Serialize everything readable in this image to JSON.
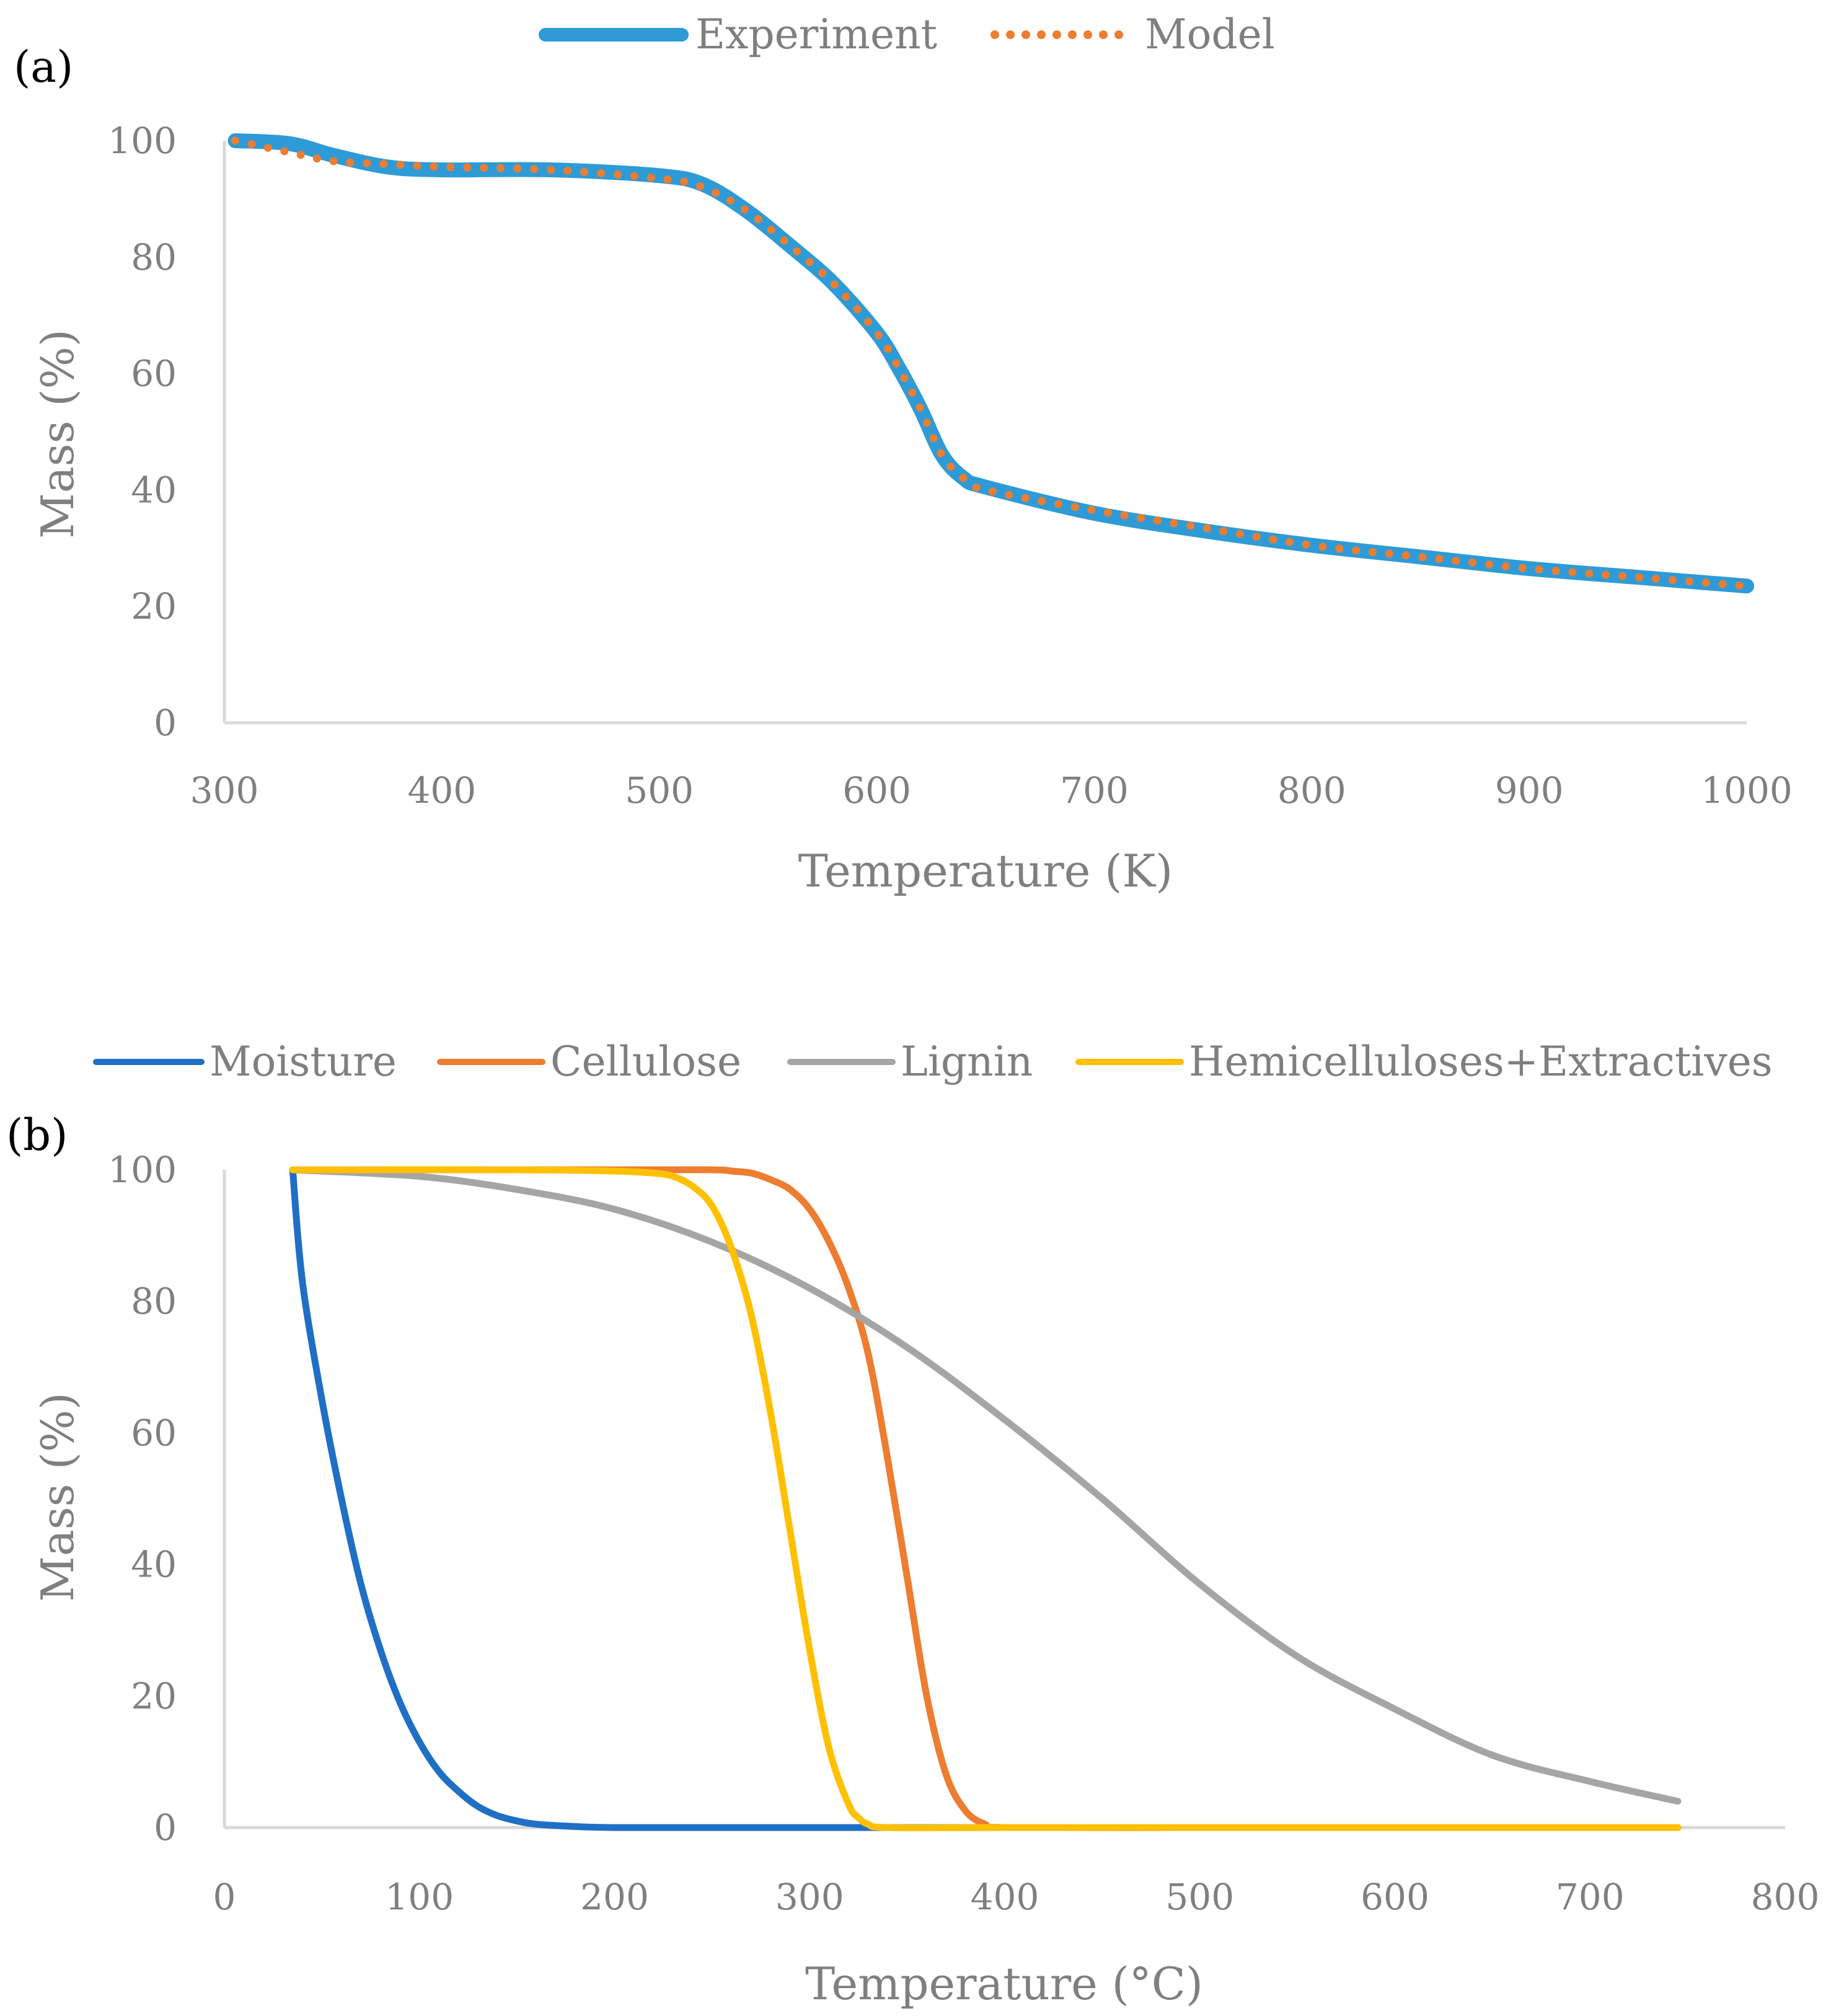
{
  "chart_data": [
    {
      "type": "line",
      "panel_label": "(a)",
      "title": "",
      "xlabel": "Temperature (K)",
      "ylabel": "Mass (%)",
      "xlim": [
        300,
        1000
      ],
      "ylim": [
        0,
        100
      ],
      "xticks": [
        300,
        400,
        500,
        600,
        700,
        800,
        900,
        1000
      ],
      "yticks": [
        0,
        20,
        40,
        60,
        80,
        100
      ],
      "grid": false,
      "legend_position": "top-center",
      "series": [
        {
          "name": "Experiment",
          "color": "#2e9bd6",
          "style": "solid-thick",
          "x": [
            305,
            330,
            350,
            375,
            400,
            450,
            500,
            520,
            540,
            560,
            580,
            600,
            610,
            620,
            630,
            640,
            650,
            700,
            750,
            800,
            850,
            900,
            950,
            1000
          ],
          "y": [
            100,
            99.5,
            97.5,
            95.5,
            95,
            95,
            94,
            92.5,
            88,
            82,
            75.5,
            67,
            61,
            54,
            46,
            42,
            40.5,
            36,
            33,
            30.5,
            28.5,
            26.5,
            25,
            23.5
          ]
        },
        {
          "name": "Model",
          "color": "#ed7d31",
          "style": "dotted",
          "x": [
            305,
            330,
            350,
            375,
            400,
            450,
            500,
            520,
            540,
            560,
            580,
            600,
            610,
            620,
            630,
            640,
            650,
            700,
            750,
            800,
            850,
            900,
            950,
            1000
          ],
          "y": [
            100,
            98,
            96.5,
            96,
            95.5,
            95,
            93.5,
            92,
            88,
            82,
            75.5,
            67,
            61,
            54,
            46,
            42,
            40,
            36.5,
            33.5,
            30.5,
            28.5,
            26.5,
            25,
            23.5
          ]
        }
      ]
    },
    {
      "type": "line",
      "panel_label": "(b)",
      "title": "",
      "xlabel": "Temperature (°C)",
      "ylabel": "Mass (%)",
      "xlim": [
        0,
        800
      ],
      "ylim": [
        0,
        100
      ],
      "xticks": [
        0,
        100,
        200,
        300,
        400,
        500,
        600,
        700,
        800
      ],
      "yticks": [
        0,
        20,
        40,
        60,
        80,
        100
      ],
      "grid": false,
      "legend_position": "top",
      "series": [
        {
          "name": "Moisture",
          "color": "#1f6fc5",
          "style": "solid",
          "x": [
            35,
            40,
            50,
            60,
            70,
            80,
            90,
            100,
            110,
            120,
            130,
            140,
            150,
            160,
            180,
            200,
            250,
            330,
            400,
            500,
            600,
            745
          ],
          "y": [
            100,
            83,
            65,
            50,
            37,
            27,
            19,
            13,
            8.5,
            5.5,
            3.2,
            1.8,
            1.0,
            0.5,
            0.15,
            0,
            0,
            0,
            0,
            0,
            0,
            0
          ]
        },
        {
          "name": "Cellulose",
          "color": "#ed7d31",
          "style": "solid",
          "x": [
            35,
            200,
            250,
            260,
            270,
            280,
            290,
            300,
            310,
            320,
            330,
            340,
            350,
            360,
            370,
            380,
            390,
            400,
            500,
            600,
            745
          ],
          "y": [
            100,
            100,
            100,
            99.8,
            99.5,
            98.5,
            97,
            94,
            89,
            82,
            72,
            56,
            38,
            20,
            8,
            2.5,
            0.5,
            0,
            0,
            0,
            0
          ]
        },
        {
          "name": "Lignin",
          "color": "#a5a5a5",
          "style": "solid",
          "x": [
            35,
            100,
            150,
            200,
            250,
            300,
            350,
            400,
            450,
            500,
            550,
            600,
            650,
            700,
            745
          ],
          "y": [
            100,
            99,
            97,
            94,
            89,
            82,
            73,
            62,
            50,
            37,
            26,
            18,
            11,
            7,
            4
          ]
        },
        {
          "name": "Hemicelluloses+Extractives",
          "color": "#ffc000",
          "style": "solid",
          "x": [
            35,
            150,
            200,
            220,
            230,
            240,
            250,
            260,
            270,
            280,
            290,
            300,
            310,
            320,
            325,
            330,
            340,
            400,
            500,
            600,
            745
          ],
          "y": [
            100,
            100,
            99.8,
            99.5,
            99,
            97.5,
            94.5,
            88,
            78,
            63,
            45,
            27,
            12,
            3.5,
            1.5,
            0.5,
            0,
            0,
            0,
            0,
            0
          ]
        }
      ]
    }
  ]
}
